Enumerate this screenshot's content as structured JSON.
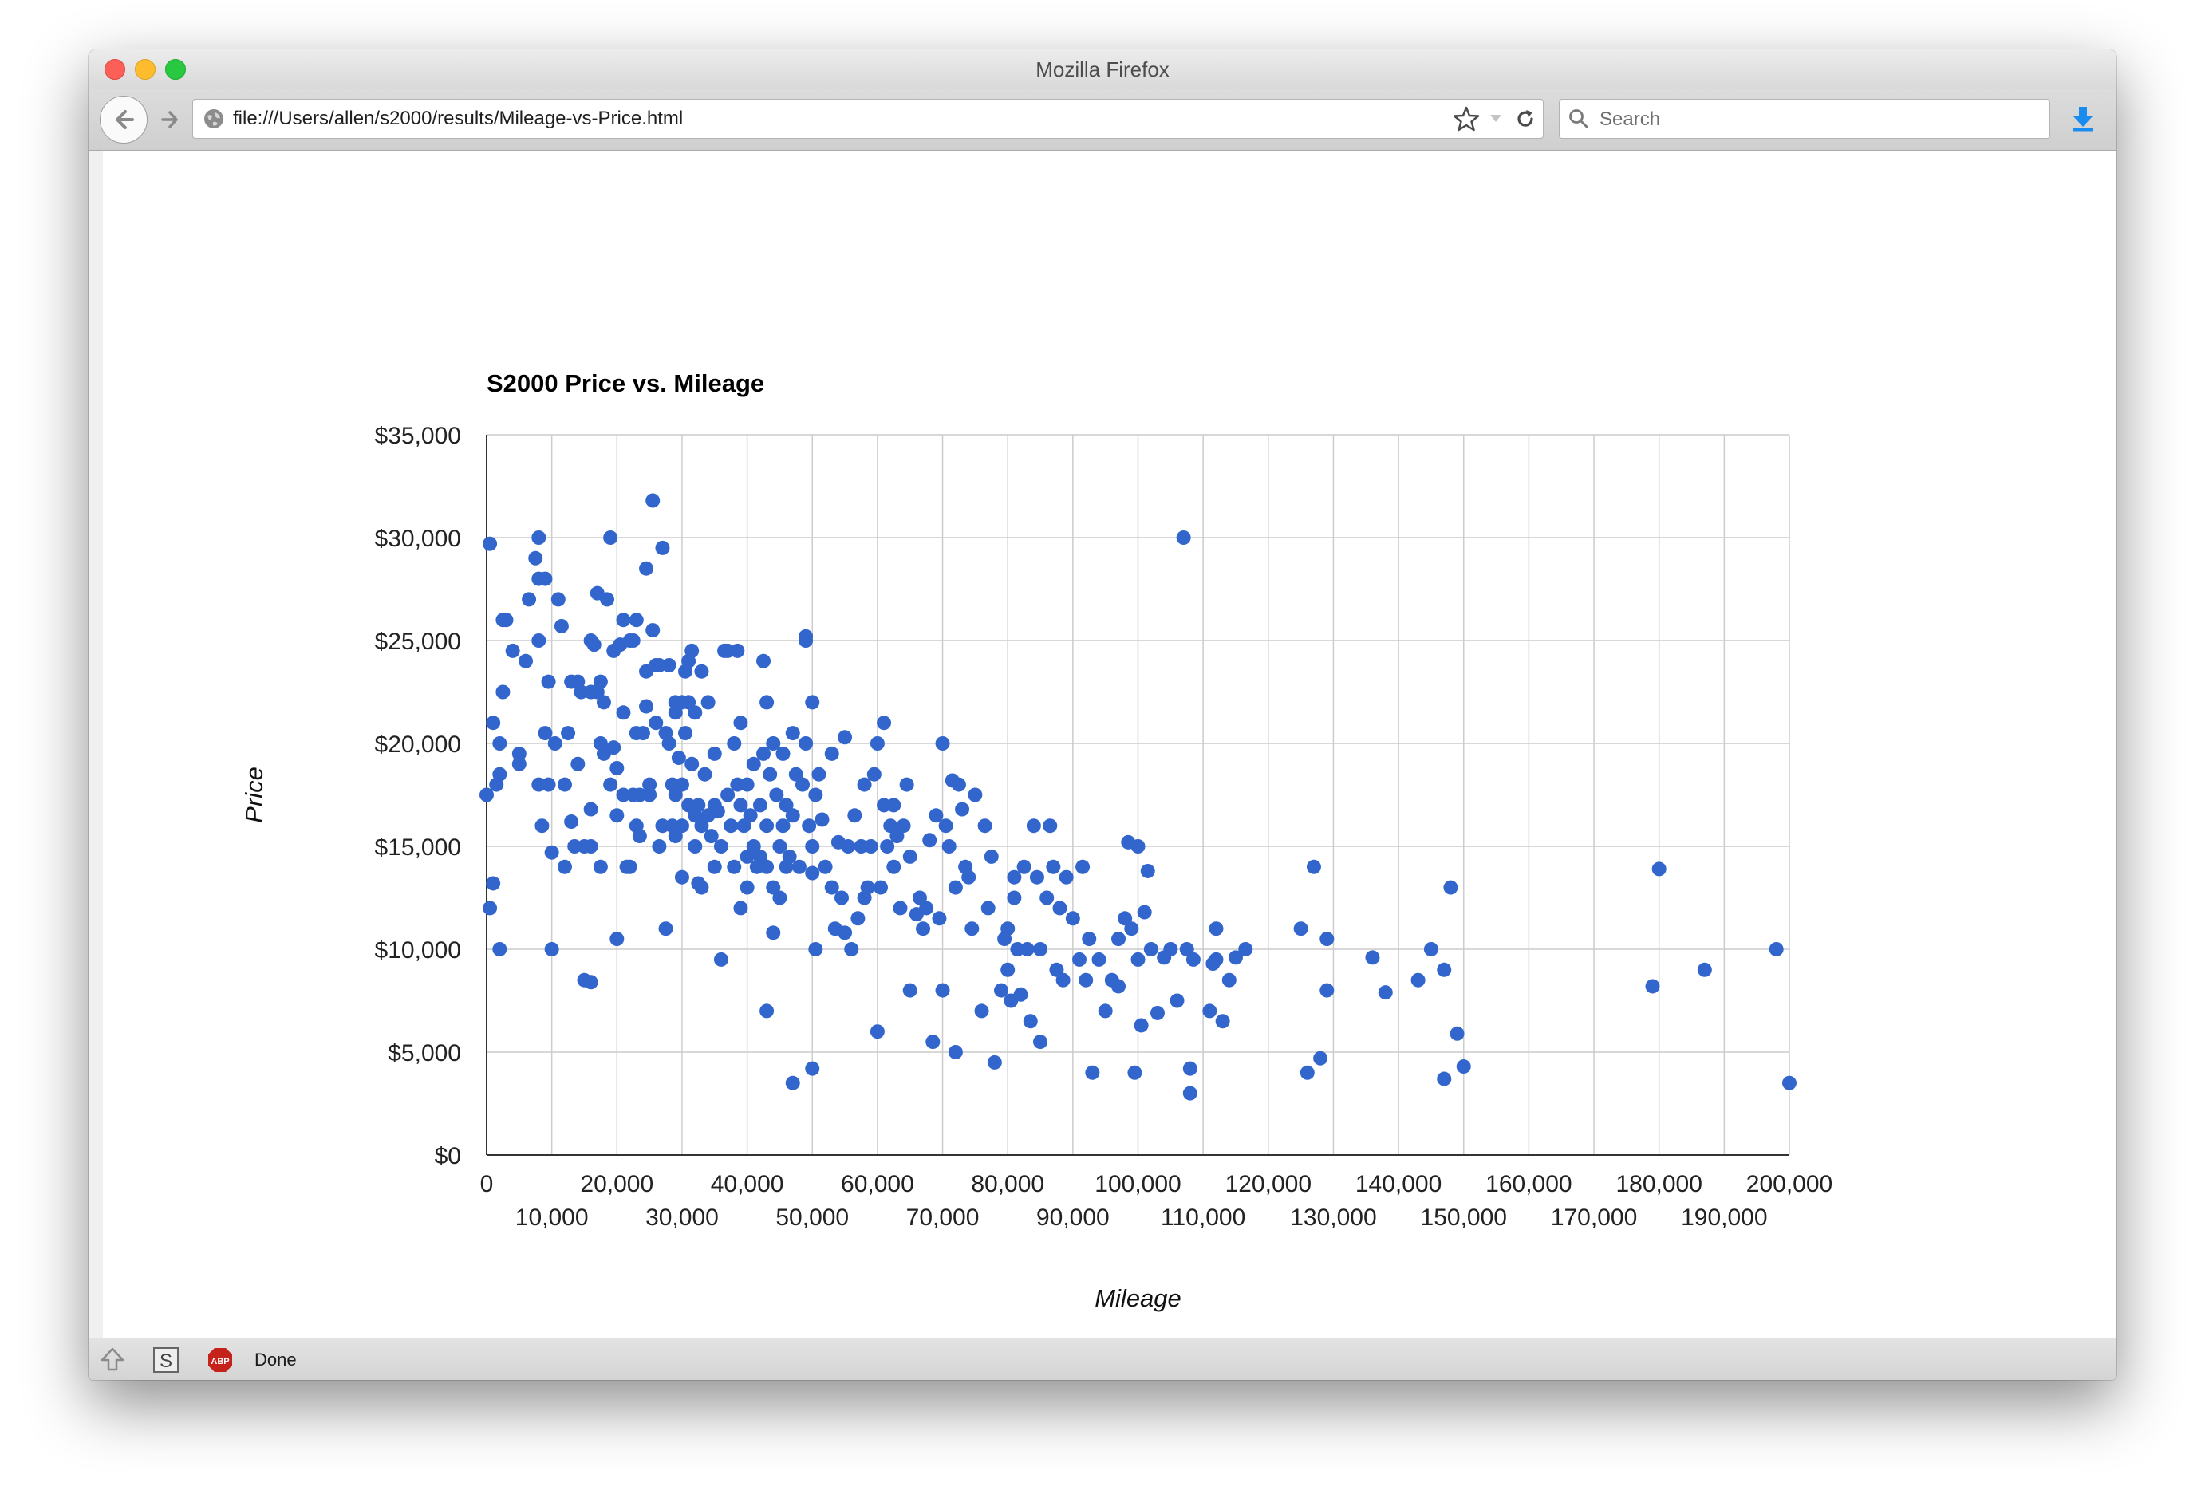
{
  "window": {
    "title": "Mozilla Firefox"
  },
  "toolbar": {
    "url": "file:///Users/allen/s2000/results/Mileage-vs-Price.html",
    "search_placeholder": "Search"
  },
  "status": {
    "text": "Done"
  },
  "icons": {
    "back": "back-arrow-icon",
    "forward": "forward-arrow-icon",
    "site": "globe-icon",
    "bookmark": "star-icon",
    "reload": "reload-icon",
    "search": "magnifier-icon",
    "downloads": "download-arrow-icon",
    "addon1": "up-arrow-icon",
    "addon2": "s-box-icon",
    "addon3": "abp-icon"
  },
  "colors": {
    "point": "#3366cc",
    "grid": "#cccccc",
    "axis": "#333333"
  },
  "chart_data": {
    "type": "scatter",
    "title": "S2000 Price vs. Mileage",
    "xlabel": "Mileage",
    "ylabel": "Price",
    "xlim": [
      0,
      200000
    ],
    "ylim": [
      0,
      35000
    ],
    "x_ticks_row1": [
      "0",
      "20,000",
      "40,000",
      "60,000",
      "80,000",
      "100,000",
      "120,000",
      "140,000",
      "160,000",
      "180,000",
      "200,000"
    ],
    "x_ticks_row2": [
      "10,000",
      "30,000",
      "50,000",
      "70,000",
      "90,000",
      "110,000",
      "130,000",
      "150,000",
      "170,000",
      "190,000"
    ],
    "y_ticks": [
      "$0",
      "$5,000",
      "$10,000",
      "$15,000",
      "$20,000",
      "$25,000",
      "$30,000",
      "$35,000"
    ],
    "grid": true,
    "legend": "none",
    "points": [
      [
        500,
        29700
      ],
      [
        1000,
        21000
      ],
      [
        1500,
        18000
      ],
      [
        2000,
        20000
      ],
      [
        2000,
        18500
      ],
      [
        2000,
        10000
      ],
      [
        2500,
        26000
      ],
      [
        3000,
        26000
      ],
      [
        2500,
        22500
      ],
      [
        0,
        17500
      ],
      [
        500,
        12000
      ],
      [
        1000,
        13200
      ],
      [
        4000,
        24500
      ],
      [
        5000,
        19500
      ],
      [
        5000,
        19000
      ],
      [
        6000,
        24000
      ],
      [
        6500,
        27000
      ],
      [
        7500,
        29000
      ],
      [
        8000,
        30000
      ],
      [
        8000,
        28000
      ],
      [
        9000,
        28000
      ],
      [
        8000,
        25000
      ],
      [
        8000,
        18000
      ],
      [
        8500,
        16000
      ],
      [
        9000,
        20500
      ],
      [
        9500,
        23000
      ],
      [
        9500,
        18000
      ],
      [
        10000,
        14700
      ],
      [
        10000,
        10000
      ],
      [
        10500,
        20000
      ],
      [
        11000,
        27000
      ],
      [
        11500,
        25700
      ],
      [
        12000,
        14000
      ],
      [
        12000,
        18000
      ],
      [
        12500,
        20500
      ],
      [
        13000,
        16200
      ],
      [
        13000,
        23000
      ],
      [
        14000,
        23000
      ],
      [
        13500,
        15000
      ],
      [
        14000,
        19000
      ],
      [
        14500,
        22500
      ],
      [
        15000,
        15000
      ],
      [
        15000,
        8500
      ],
      [
        16000,
        16800
      ],
      [
        16000,
        22500
      ],
      [
        16000,
        15000
      ],
      [
        16000,
        8400
      ],
      [
        16000,
        25000
      ],
      [
        16500,
        24800
      ],
      [
        17000,
        27300
      ],
      [
        17000,
        22500
      ],
      [
        17500,
        23000
      ],
      [
        17500,
        20000
      ],
      [
        17500,
        14000
      ],
      [
        18000,
        22000
      ],
      [
        18000,
        19500
      ],
      [
        18500,
        27000
      ],
      [
        19000,
        18000
      ],
      [
        19000,
        30000
      ],
      [
        19500,
        24500
      ],
      [
        19500,
        19800
      ],
      [
        20000,
        18800
      ],
      [
        20000,
        16500
      ],
      [
        20000,
        10500
      ],
      [
        20500,
        24800
      ],
      [
        21000,
        26000
      ],
      [
        21000,
        21500
      ],
      [
        21000,
        17500
      ],
      [
        21500,
        14000
      ],
      [
        22000,
        25000
      ],
      [
        22000,
        14000
      ],
      [
        22500,
        17500
      ],
      [
        22500,
        25000
      ],
      [
        23000,
        26000
      ],
      [
        23000,
        20500
      ],
      [
        23000,
        16000
      ],
      [
        23500,
        17500
      ],
      [
        23500,
        15500
      ],
      [
        24000,
        20500
      ],
      [
        24500,
        28500
      ],
      [
        24500,
        23500
      ],
      [
        24500,
        21800
      ],
      [
        25000,
        18000
      ],
      [
        25000,
        17500
      ],
      [
        25500,
        31800
      ],
      [
        25500,
        25500
      ],
      [
        26000,
        23800
      ],
      [
        26000,
        21000
      ],
      [
        26500,
        23800
      ],
      [
        26500,
        15000
      ],
      [
        27000,
        29500
      ],
      [
        27000,
        16000
      ],
      [
        27500,
        20500
      ],
      [
        27500,
        11000
      ],
      [
        28000,
        23800
      ],
      [
        28000,
        20000
      ],
      [
        28500,
        18000
      ],
      [
        28500,
        16000
      ],
      [
        29000,
        22000
      ],
      [
        29000,
        21500
      ],
      [
        29000,
        17500
      ],
      [
        29000,
        15500
      ],
      [
        29500,
        19300
      ],
      [
        30000,
        22000
      ],
      [
        30000,
        18000
      ],
      [
        30000,
        16000
      ],
      [
        30000,
        13500
      ],
      [
        30500,
        23500
      ],
      [
        30500,
        20500
      ],
      [
        31000,
        24000
      ],
      [
        31000,
        22000
      ],
      [
        31000,
        17000
      ],
      [
        31500,
        24500
      ],
      [
        31500,
        19000
      ],
      [
        32000,
        21500
      ],
      [
        32000,
        16500
      ],
      [
        32000,
        15000
      ],
      [
        32500,
        17000
      ],
      [
        32500,
        13200
      ],
      [
        33000,
        23500
      ],
      [
        33000,
        16000
      ],
      [
        33000,
        13000
      ],
      [
        33500,
        18500
      ],
      [
        34000,
        22000
      ],
      [
        34000,
        16500
      ],
      [
        34500,
        15500
      ],
      [
        35000,
        17000
      ],
      [
        35000,
        14000
      ],
      [
        35000,
        19500
      ],
      [
        35500,
        16700
      ],
      [
        36000,
        15000
      ],
      [
        36000,
        9500
      ],
      [
        36500,
        24500
      ],
      [
        37000,
        24500
      ],
      [
        37000,
        17500
      ],
      [
        37500,
        16000
      ],
      [
        38000,
        20000
      ],
      [
        38000,
        14000
      ],
      [
        38500,
        24500
      ],
      [
        38500,
        18000
      ],
      [
        39000,
        21000
      ],
      [
        39000,
        17000
      ],
      [
        39000,
        12000
      ],
      [
        39500,
        16000
      ],
      [
        40000,
        18000
      ],
      [
        40000,
        14500
      ],
      [
        40000,
        13000
      ],
      [
        40500,
        16500
      ],
      [
        41000,
        19000
      ],
      [
        41000,
        15000
      ],
      [
        41500,
        14000
      ],
      [
        42000,
        17000
      ],
      [
        42000,
        14500
      ],
      [
        42500,
        24000
      ],
      [
        42500,
        19500
      ],
      [
        43000,
        22000
      ],
      [
        43000,
        16000
      ],
      [
        43000,
        14000
      ],
      [
        43000,
        7000
      ],
      [
        43500,
        18500
      ],
      [
        44000,
        20000
      ],
      [
        44000,
        13000
      ],
      [
        44000,
        10800
      ],
      [
        44500,
        17500
      ],
      [
        45000,
        15000
      ],
      [
        45000,
        12500
      ],
      [
        45500,
        19500
      ],
      [
        45500,
        16000
      ],
      [
        46000,
        17000
      ],
      [
        46000,
        14000
      ],
      [
        46500,
        14500
      ],
      [
        47000,
        20500
      ],
      [
        47000,
        16500
      ],
      [
        47000,
        3500
      ],
      [
        47500,
        18500
      ],
      [
        48000,
        14000
      ],
      [
        48500,
        18000
      ],
      [
        49000,
        20000
      ],
      [
        49000,
        25200
      ],
      [
        49000,
        25000
      ],
      [
        49500,
        16000
      ],
      [
        50000,
        22000
      ],
      [
        50000,
        15000
      ],
      [
        50000,
        13700
      ],
      [
        50000,
        4200
      ],
      [
        50500,
        17500
      ],
      [
        50500,
        10000
      ],
      [
        51000,
        18500
      ],
      [
        51500,
        16300
      ],
      [
        52000,
        14000
      ],
      [
        53000,
        19500
      ],
      [
        53000,
        13000
      ],
      [
        53500,
        11000
      ],
      [
        54000,
        15200
      ],
      [
        54500,
        12500
      ],
      [
        55000,
        20300
      ],
      [
        55000,
        10800
      ],
      [
        55500,
        15000
      ],
      [
        56000,
        10000
      ],
      [
        56500,
        16500
      ],
      [
        57000,
        11500
      ],
      [
        57500,
        15000
      ],
      [
        58000,
        18000
      ],
      [
        58000,
        12500
      ],
      [
        58500,
        13000
      ],
      [
        59000,
        15000
      ],
      [
        59500,
        18500
      ],
      [
        60000,
        20000
      ],
      [
        60000,
        6000
      ],
      [
        60500,
        13000
      ],
      [
        61000,
        21000
      ],
      [
        61000,
        17000
      ],
      [
        61500,
        15000
      ],
      [
        62000,
        16000
      ],
      [
        62500,
        17000
      ],
      [
        62500,
        14000
      ],
      [
        63000,
        15500
      ],
      [
        63500,
        12000
      ],
      [
        64000,
        16000
      ],
      [
        64500,
        18000
      ],
      [
        65000,
        14500
      ],
      [
        65000,
        8000
      ],
      [
        66000,
        11700
      ],
      [
        66500,
        12500
      ],
      [
        67000,
        11000
      ],
      [
        67500,
        12000
      ],
      [
        68000,
        15300
      ],
      [
        68500,
        5500
      ],
      [
        69000,
        16500
      ],
      [
        69500,
        11500
      ],
      [
        70000,
        20000
      ],
      [
        70000,
        8000
      ],
      [
        70500,
        16000
      ],
      [
        71000,
        15000
      ],
      [
        71500,
        18200
      ],
      [
        72000,
        13000
      ],
      [
        72000,
        5000
      ],
      [
        72500,
        18000
      ],
      [
        73000,
        16800
      ],
      [
        73500,
        14000
      ],
      [
        74000,
        13500
      ],
      [
        74500,
        11000
      ],
      [
        75000,
        17500
      ],
      [
        76000,
        7000
      ],
      [
        76500,
        16000
      ],
      [
        77000,
        12000
      ],
      [
        77500,
        14500
      ],
      [
        78000,
        4500
      ],
      [
        79000,
        8000
      ],
      [
        79500,
        10500
      ],
      [
        80000,
        11000
      ],
      [
        80000,
        9000
      ],
      [
        80500,
        7500
      ],
      [
        81000,
        13500
      ],
      [
        81000,
        12500
      ],
      [
        81500,
        10000
      ],
      [
        82000,
        7800
      ],
      [
        82500,
        14000
      ],
      [
        83000,
        10000
      ],
      [
        83500,
        6500
      ],
      [
        84000,
        16000
      ],
      [
        84500,
        13500
      ],
      [
        85000,
        10000
      ],
      [
        85000,
        5500
      ],
      [
        86000,
        12500
      ],
      [
        86500,
        16000
      ],
      [
        87000,
        14000
      ],
      [
        87500,
        9000
      ],
      [
        88000,
        12000
      ],
      [
        88500,
        8500
      ],
      [
        89000,
        13500
      ],
      [
        90000,
        11500
      ],
      [
        91000,
        9500
      ],
      [
        91500,
        14000
      ],
      [
        92000,
        8500
      ],
      [
        92500,
        10500
      ],
      [
        93000,
        4000
      ],
      [
        94000,
        9500
      ],
      [
        95000,
        7000
      ],
      [
        96000,
        8500
      ],
      [
        97000,
        10500
      ],
      [
        97000,
        8200
      ],
      [
        98000,
        11500
      ],
      [
        98500,
        15200
      ],
      [
        99000,
        11000
      ],
      [
        99500,
        4000
      ],
      [
        100000,
        9500
      ],
      [
        100000,
        15000
      ],
      [
        100500,
        6300
      ],
      [
        101000,
        11800
      ],
      [
        101500,
        13800
      ],
      [
        102000,
        10000
      ],
      [
        103000,
        6900
      ],
      [
        104000,
        9600
      ],
      [
        105000,
        10000
      ],
      [
        106000,
        7500
      ],
      [
        107000,
        30000
      ],
      [
        107500,
        10000
      ],
      [
        108500,
        9500
      ],
      [
        108000,
        4200
      ],
      [
        108000,
        3000
      ],
      [
        111000,
        7000
      ],
      [
        111500,
        9300
      ],
      [
        112000,
        11000
      ],
      [
        112000,
        9500
      ],
      [
        113000,
        6500
      ],
      [
        114000,
        8500
      ],
      [
        115000,
        9600
      ],
      [
        116500,
        10000
      ],
      [
        125000,
        11000
      ],
      [
        126000,
        4000
      ],
      [
        127000,
        14000
      ],
      [
        128000,
        4700
      ],
      [
        129000,
        10500
      ],
      [
        129000,
        8000
      ],
      [
        136000,
        9600
      ],
      [
        138000,
        7900
      ],
      [
        143000,
        8500
      ],
      [
        145000,
        10000
      ],
      [
        147000,
        9000
      ],
      [
        147000,
        3700
      ],
      [
        148000,
        13000
      ],
      [
        149000,
        5900
      ],
      [
        150000,
        4300
      ],
      [
        179000,
        8200
      ],
      [
        180000,
        13900
      ],
      [
        187000,
        9000
      ],
      [
        198000,
        10000
      ],
      [
        200000,
        3500
      ]
    ]
  }
}
